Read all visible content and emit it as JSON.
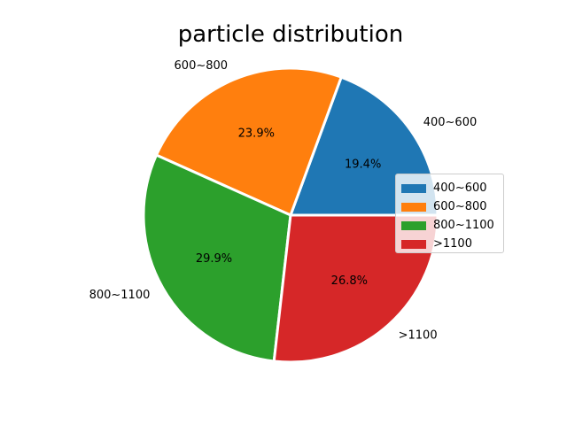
{
  "chart_data": {
    "type": "pie",
    "title": "particle distribution",
    "categories": [
      "400~600",
      "600~800",
      "800~1100",
      ">1100"
    ],
    "values": [
      19.4,
      23.9,
      29.9,
      26.8
    ],
    "value_labels": [
      "19.4%",
      "23.9%",
      "29.9%",
      "26.8%"
    ],
    "colors": [
      "#1f77b4",
      "#ff7f0e",
      "#2ca02c",
      "#d62728"
    ],
    "start_angle_deg": 0,
    "direction": "counterclockwise",
    "legend": {
      "placement": "center-right",
      "entries": [
        "400~600",
        "600~800",
        "800~1100",
        ">1100"
      ]
    }
  }
}
